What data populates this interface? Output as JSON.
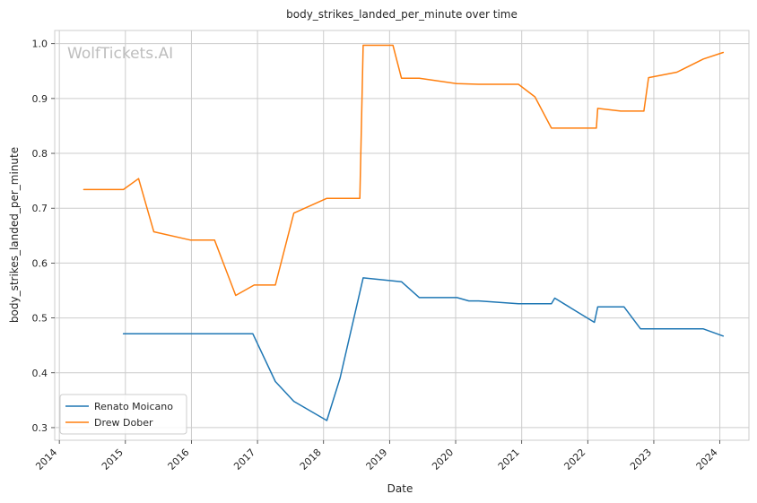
{
  "chart_data": {
    "type": "line",
    "title": "body_strikes_landed_per_minute over time",
    "xlabel": "Date",
    "ylabel": "body_strikes_landed_per_minute",
    "watermark": "WolfTickets.AI",
    "xlim": [
      2013.93,
      2024.44
    ],
    "ylim": [
      0.277,
      1.024
    ],
    "x_ticks": [
      2014,
      2015,
      2016,
      2017,
      2018,
      2019,
      2020,
      2021,
      2022,
      2023,
      2024
    ],
    "x_tick_labels": [
      "2014",
      "2015",
      "2016",
      "2017",
      "2018",
      "2019",
      "2020",
      "2021",
      "2022",
      "2023",
      "2024"
    ],
    "y_ticks": [
      0.3,
      0.4,
      0.5,
      0.6,
      0.7,
      0.8,
      0.9,
      1.0
    ],
    "y_tick_labels": [
      "0.3",
      "0.4",
      "0.5",
      "0.6",
      "0.7",
      "0.8",
      "0.9",
      "1.0"
    ],
    "grid": true,
    "legend_position": "lower-left",
    "series": [
      {
        "name": "Renato Moicano",
        "color": "#1f77b4",
        "points": [
          [
            2014.97,
            0.471
          ],
          [
            2016.93,
            0.471
          ],
          [
            2017.27,
            0.384
          ],
          [
            2017.55,
            0.348
          ],
          [
            2018.05,
            0.313
          ],
          [
            2018.25,
            0.39
          ],
          [
            2018.6,
            0.573
          ],
          [
            2019.18,
            0.566
          ],
          [
            2019.45,
            0.537
          ],
          [
            2020.02,
            0.537
          ],
          [
            2020.2,
            0.531
          ],
          [
            2020.35,
            0.531
          ],
          [
            2020.95,
            0.526
          ],
          [
            2021.45,
            0.526
          ],
          [
            2021.5,
            0.536
          ],
          [
            2022.1,
            0.492
          ],
          [
            2022.15,
            0.52
          ],
          [
            2022.55,
            0.52
          ],
          [
            2022.8,
            0.48
          ],
          [
            2023.75,
            0.48
          ],
          [
            2024.05,
            0.467
          ]
        ]
      },
      {
        "name": "Drew Dober",
        "color": "#ff7f0e",
        "points": [
          [
            2014.37,
            0.734
          ],
          [
            2014.97,
            0.734
          ],
          [
            2015.2,
            0.754
          ],
          [
            2015.43,
            0.657
          ],
          [
            2015.98,
            0.642
          ],
          [
            2016.35,
            0.642
          ],
          [
            2016.67,
            0.541
          ],
          [
            2016.95,
            0.56
          ],
          [
            2017.27,
            0.56
          ],
          [
            2017.55,
            0.691
          ],
          [
            2018.05,
            0.718
          ],
          [
            2018.55,
            0.718
          ],
          [
            2018.6,
            0.997
          ],
          [
            2019.05,
            0.997
          ],
          [
            2019.18,
            0.937
          ],
          [
            2019.45,
            0.937
          ],
          [
            2020.02,
            0.927
          ],
          [
            2020.35,
            0.926
          ],
          [
            2020.95,
            0.926
          ],
          [
            2021.2,
            0.903
          ],
          [
            2021.45,
            0.846
          ],
          [
            2022.13,
            0.846
          ],
          [
            2022.15,
            0.882
          ],
          [
            2022.5,
            0.877
          ],
          [
            2022.85,
            0.877
          ],
          [
            2022.92,
            0.938
          ],
          [
            2023.35,
            0.948
          ],
          [
            2023.75,
            0.972
          ],
          [
            2024.05,
            0.984
          ]
        ]
      }
    ]
  }
}
